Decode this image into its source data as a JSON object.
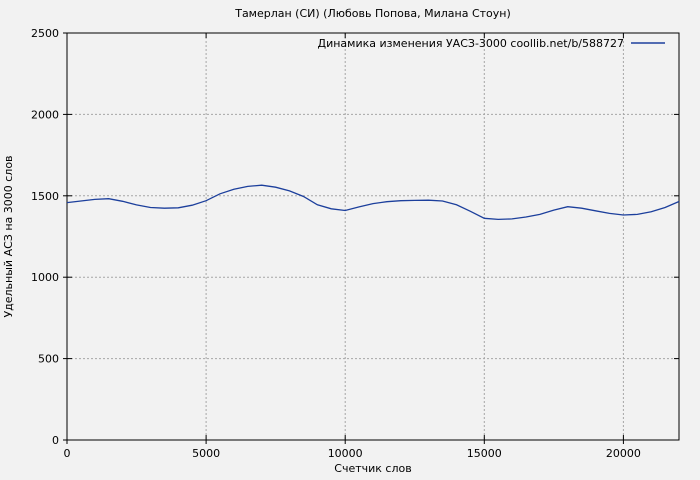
{
  "chart_data": {
    "type": "line",
    "title": "Тамерлан (СИ) (Любовь Попова, Милана Стоун)",
    "xlabel": "Счетчик слов",
    "ylabel": "Удельный АСЗ на 3000 слов",
    "legend_position": "top-right-inside",
    "grid": true,
    "xlim": [
      0,
      22000
    ],
    "ylim": [
      0,
      2500
    ],
    "xticks": [
      0,
      5000,
      10000,
      15000,
      20000
    ],
    "yticks": [
      0,
      500,
      1000,
      1500,
      2000,
      2500
    ],
    "series": [
      {
        "name": "Динамика изменения УАСЗ-3000 coollib.net/b/588727",
        "color": "#1c3f9c",
        "x": [
          0,
          500,
          1000,
          1500,
          2000,
          2500,
          3000,
          3500,
          4000,
          4500,
          5000,
          5500,
          6000,
          6500,
          7000,
          7500,
          8000,
          8500,
          9000,
          9500,
          10000,
          10500,
          11000,
          11500,
          12000,
          12500,
          13000,
          13500,
          14000,
          14500,
          15000,
          15500,
          16000,
          16500,
          17000,
          17500,
          18000,
          18500,
          19000,
          19500,
          20000,
          20500,
          21000,
          21500,
          22000
        ],
        "y": [
          1458,
          1468,
          1478,
          1482,
          1466,
          1444,
          1428,
          1424,
          1426,
          1442,
          1470,
          1512,
          1540,
          1558,
          1565,
          1553,
          1530,
          1496,
          1445,
          1420,
          1410,
          1432,
          1452,
          1464,
          1470,
          1472,
          1473,
          1468,
          1445,
          1405,
          1362,
          1355,
          1358,
          1370,
          1386,
          1412,
          1433,
          1424,
          1408,
          1392,
          1382,
          1386,
          1402,
          1428,
          1465
        ]
      }
    ],
    "colors": {
      "background": "#f2f2f2",
      "frame": "#000000",
      "grid": "#a6a6a6",
      "text": "#000000",
      "line": "#1c3f9c"
    }
  }
}
